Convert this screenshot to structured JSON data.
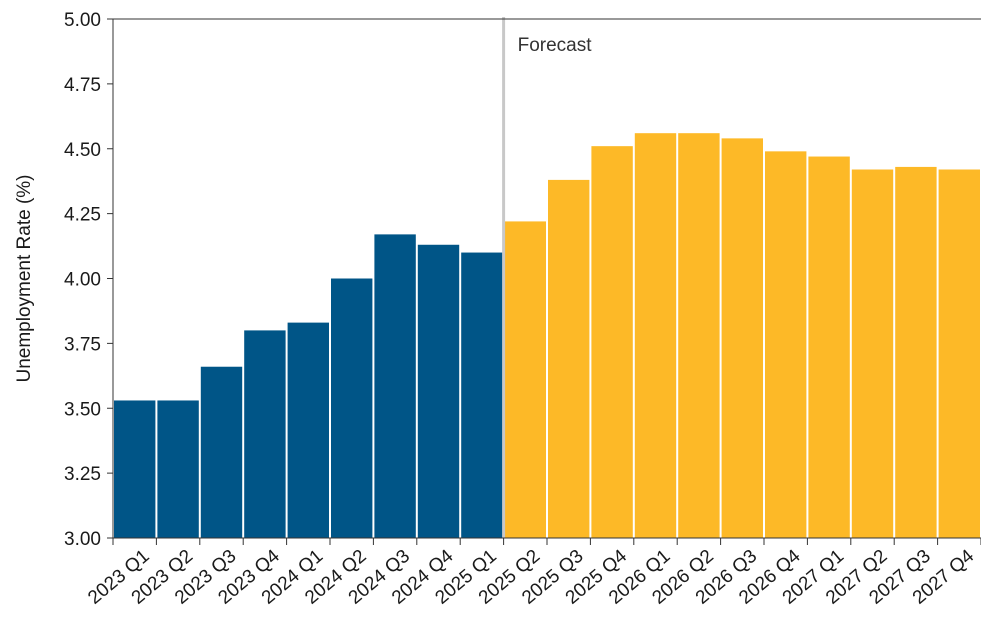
{
  "chart_data": {
    "type": "bar",
    "title": "",
    "xlabel": "",
    "ylabel": "Unemployment Rate (%)",
    "ylim": [
      3.0,
      5.0
    ],
    "yticks": [
      "3.00",
      "3.25",
      "3.50",
      "3.75",
      "4.00",
      "4.25",
      "4.50",
      "4.75",
      "5.00"
    ],
    "grid": false,
    "categories": [
      "2023 Q1",
      "2023 Q2",
      "2023 Q3",
      "2023 Q4",
      "2024 Q1",
      "2024 Q2",
      "2024 Q3",
      "2024 Q4",
      "2025 Q1",
      "2025 Q2",
      "2025 Q3",
      "2025 Q4",
      "2026 Q1",
      "2026 Q2",
      "2026 Q3",
      "2026 Q4",
      "2027 Q1",
      "2027 Q2",
      "2027 Q3",
      "2027 Q4"
    ],
    "values": [
      3.53,
      3.53,
      3.66,
      3.8,
      3.83,
      4.0,
      4.17,
      4.13,
      4.1,
      4.22,
      4.38,
      4.51,
      4.56,
      4.56,
      4.54,
      4.49,
      4.47,
      4.42,
      4.43,
      4.42
    ],
    "series_type": [
      "actual",
      "actual",
      "actual",
      "actual",
      "actual",
      "actual",
      "actual",
      "actual",
      "actual",
      "forecast",
      "forecast",
      "forecast",
      "forecast",
      "forecast",
      "forecast",
      "forecast",
      "forecast",
      "forecast",
      "forecast",
      "forecast"
    ],
    "colors": {
      "actual": "#005587",
      "forecast": "#FDB927",
      "divider": "#c8c8c8",
      "axis": "#333333"
    },
    "divider_after_category": "2025 Q1",
    "annotation": "Forecast"
  }
}
